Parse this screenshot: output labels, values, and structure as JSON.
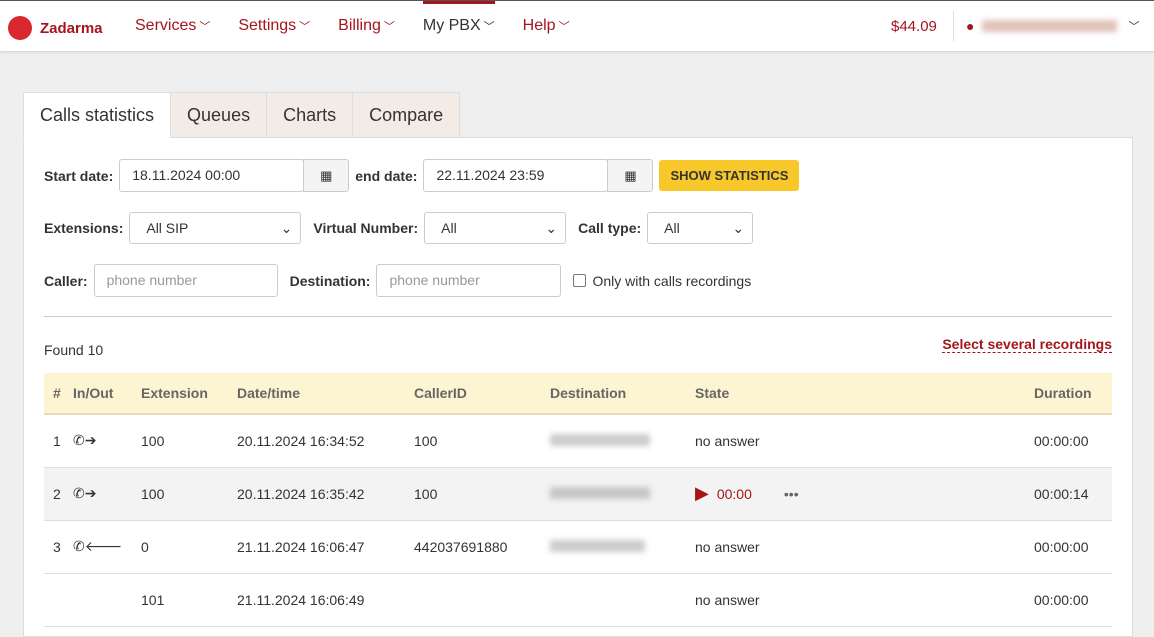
{
  "header": {
    "brand": "Zadarma",
    "nav": [
      {
        "label": "Services"
      },
      {
        "label": "Settings"
      },
      {
        "label": "Billing"
      },
      {
        "label": "My PBX",
        "active": true
      },
      {
        "label": "Help"
      }
    ],
    "balance": "$44.09"
  },
  "tabs": [
    {
      "label": "Calls statistics",
      "active": true
    },
    {
      "label": "Queues"
    },
    {
      "label": "Charts"
    },
    {
      "label": "Compare"
    }
  ],
  "filters": {
    "start_label": "Start date:",
    "start": "18.11.2024 00:00",
    "end_label": "end date:",
    "end": "22.11.2024 23:59",
    "show": "SHOW STATISTICS",
    "ext_label": "Extensions:",
    "ext": "All SIP",
    "vn_label": "Virtual Number:",
    "vn": "All",
    "ct_label": "Call type:",
    "ct": "All",
    "caller_label": "Caller:",
    "caller_ph": "phone number",
    "dest_label": "Destination:",
    "dest_ph": "phone number",
    "rec_label": "Only with calls recordings"
  },
  "results": {
    "found": "Found 10",
    "select_rec": "Select several recordings",
    "columns": [
      "#",
      "In/Out",
      "Extension",
      "Date/time",
      "CallerID",
      "Destination",
      "State",
      "Duration"
    ],
    "rows": [
      {
        "n": "1",
        "dir": "out",
        "ext": "100",
        "dt": "20.11.2024 16:34:52",
        "cid": "100",
        "state": "no answer",
        "dur": "00:00:00"
      },
      {
        "n": "2",
        "dir": "out",
        "ext": "100",
        "dt": "20.11.2024 16:35:42",
        "cid": "100",
        "state": "00:00",
        "dur": "00:00:14"
      },
      {
        "n": "3",
        "dir": "in",
        "ext": "0",
        "dt": "21.11.2024 16:06:47",
        "cid": "442037691880",
        "state": "no answer",
        "dur": "00:00:00"
      },
      {
        "n": "",
        "dir": "",
        "ext": "101",
        "dt": "21.11.2024 16:06:49",
        "cid": "",
        "state": "no answer",
        "dur": "00:00:00"
      }
    ]
  }
}
